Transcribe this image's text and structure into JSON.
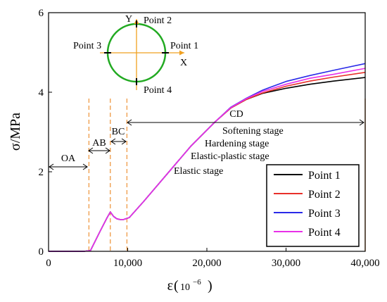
{
  "chart_data": {
    "type": "line",
    "xlabel": "ε",
    "xlabel_unit_base": "10",
    "xlabel_unit_exp": "−6",
    "ylabel": "σ/MPa",
    "xlim": [
      0,
      40000
    ],
    "ylim": [
      0,
      6
    ],
    "xticks": [
      "0",
      "10,000",
      "20,000",
      "30,000",
      "40,000"
    ],
    "yticks": [
      "0",
      "2",
      "4",
      "6"
    ],
    "grid": false,
    "legend_position": "bottom-right",
    "series": [
      {
        "name": "Point 1",
        "color": "#000000",
        "x": [
          0,
          4500,
          5300,
          6500,
          7400,
          7800,
          8200,
          8600,
          9000,
          9500,
          10200,
          12000,
          15000,
          18000,
          21000,
          23000,
          25000,
          27000,
          30000,
          33000,
          36000,
          40000
        ],
        "y": [
          0,
          0,
          0.02,
          0.5,
          0.85,
          0.99,
          0.88,
          0.82,
          0.8,
          0.8,
          0.85,
          1.25,
          1.95,
          2.65,
          3.25,
          3.6,
          3.82,
          3.97,
          4.1,
          4.2,
          4.28,
          4.37
        ]
      },
      {
        "name": "Point 2",
        "color": "#e8302a",
        "x": [
          0,
          4500,
          5300,
          6500,
          7400,
          7800,
          8200,
          8600,
          9000,
          9500,
          10200,
          12000,
          15000,
          18000,
          21000,
          23000,
          25000,
          27000,
          30000,
          33000,
          36000,
          40000
        ],
        "y": [
          0,
          0,
          0.02,
          0.5,
          0.85,
          0.99,
          0.88,
          0.82,
          0.8,
          0.8,
          0.85,
          1.25,
          1.95,
          2.65,
          3.25,
          3.6,
          3.82,
          3.98,
          4.15,
          4.28,
          4.38,
          4.5
        ]
      },
      {
        "name": "Point 3",
        "color": "#2a2ae8",
        "x": [
          0,
          4500,
          5300,
          6500,
          7400,
          7800,
          8200,
          8600,
          9000,
          9500,
          10200,
          12000,
          15000,
          18000,
          21000,
          23000,
          25000,
          27000,
          30000,
          33000,
          36000,
          40000
        ],
        "y": [
          0,
          0,
          0.02,
          0.5,
          0.85,
          0.99,
          0.88,
          0.82,
          0.8,
          0.8,
          0.85,
          1.25,
          1.95,
          2.65,
          3.25,
          3.62,
          3.85,
          4.05,
          4.27,
          4.42,
          4.55,
          4.72
        ]
      },
      {
        "name": "Point 4",
        "color": "#e830e8",
        "x": [
          0,
          4500,
          5300,
          6500,
          7400,
          7800,
          8200,
          8600,
          9000,
          9500,
          10200,
          12000,
          15000,
          18000,
          21000,
          23000,
          25000,
          27000,
          30000,
          33000,
          36000,
          40000
        ],
        "y": [
          0,
          0,
          0.02,
          0.5,
          0.85,
          0.99,
          0.88,
          0.82,
          0.8,
          0.8,
          0.85,
          1.25,
          1.95,
          2.65,
          3.25,
          3.61,
          3.84,
          4.02,
          4.2,
          4.35,
          4.45,
          4.6
        ]
      }
    ],
    "stage_boundaries": [
      5100,
      7800,
      9900,
      40000
    ],
    "boundary_color": "#f0a050",
    "stages": [
      {
        "label": "OA",
        "from": 0,
        "to": 5100
      },
      {
        "label": "AB",
        "from": 5100,
        "to": 7800
      },
      {
        "label": "BC",
        "from": 7800,
        "to": 9900
      },
      {
        "label": "CD",
        "from": 9900,
        "to": 40000
      }
    ],
    "stage_texts": [
      "Softening stage",
      "Hardening stage",
      "Elastic-plastic stage",
      "Elastic stage"
    ],
    "inset": {
      "circle_color": "#22aa22",
      "axis_color": "#f0a020",
      "axis_x_label": "X",
      "axis_y_label": "Y",
      "points": [
        "Point 1",
        "Point 2",
        "Point 3",
        "Point 4"
      ]
    }
  }
}
